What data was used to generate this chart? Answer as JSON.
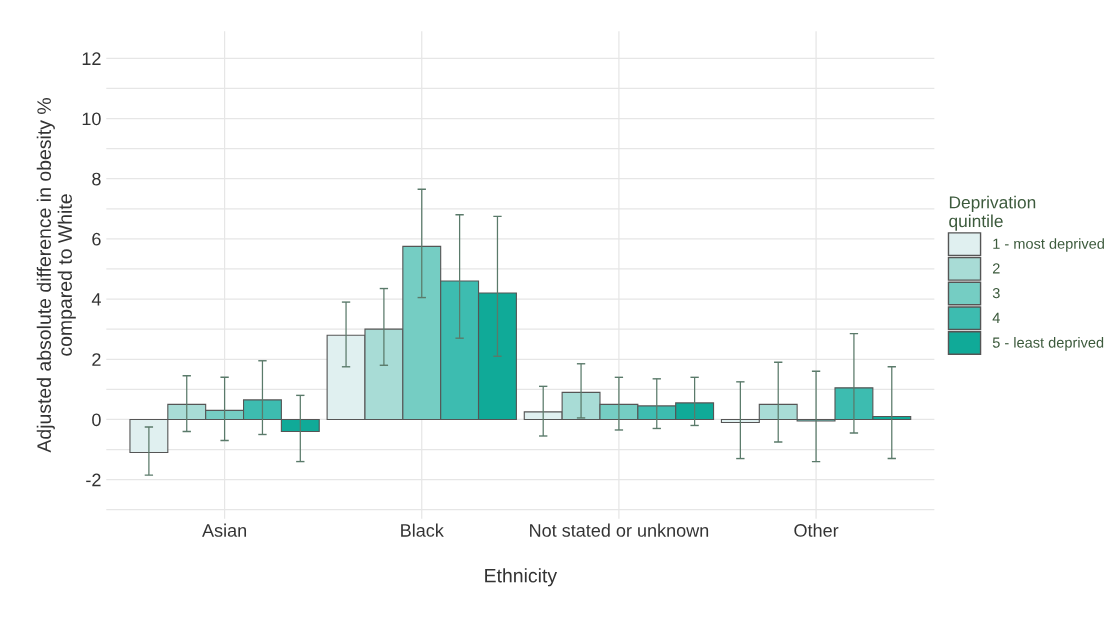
{
  "chart_data": {
    "type": "bar",
    "xlabel": "Ethnicity",
    "ylabel": "Adjusted absolute difference in obesity %\ncompared to White",
    "legend_title": "Deprivation\nquintile",
    "categories": [
      "Asian",
      "Black",
      "Not stated or unknown",
      "Other"
    ],
    "series": [
      {
        "name": "1 - most deprived",
        "color": "#e0f0f0",
        "values": [
          -1.1,
          2.8,
          0.25,
          -0.1
        ],
        "errors": [
          [
            -1.85,
            -0.25
          ],
          [
            1.75,
            3.9
          ],
          [
            -0.55,
            1.1
          ],
          [
            -1.3,
            1.25
          ]
        ]
      },
      {
        "name": "2",
        "color": "#a8dcd6",
        "values": [
          0.5,
          3.0,
          0.9,
          0.5
        ],
        "errors": [
          [
            -0.4,
            1.45
          ],
          [
            1.8,
            4.35
          ],
          [
            0.05,
            1.85
          ],
          [
            -0.75,
            1.9
          ]
        ]
      },
      {
        "name": "3",
        "color": "#75cdc3",
        "values": [
          0.3,
          5.75,
          0.5,
          -0.05
        ],
        "errors": [
          [
            -0.7,
            1.4
          ],
          [
            4.05,
            7.65
          ],
          [
            -0.35,
            1.4
          ],
          [
            -1.4,
            1.6
          ]
        ]
      },
      {
        "name": "4",
        "color": "#3dbcb0",
        "values": [
          0.65,
          4.6,
          0.45,
          1.05
        ],
        "errors": [
          [
            -0.5,
            1.95
          ],
          [
            2.7,
            6.8
          ],
          [
            -0.3,
            1.35
          ],
          [
            -0.45,
            2.85
          ]
        ]
      },
      {
        "name": "5 - least deprived",
        "color": "#10aa98",
        "values": [
          -0.4,
          4.2,
          0.55,
          0.1
        ],
        "errors": [
          [
            -1.4,
            0.8
          ],
          [
            2.1,
            6.75
          ],
          [
            -0.2,
            1.4
          ],
          [
            -1.3,
            1.75
          ]
        ]
      }
    ],
    "ylim": [
      -3.3,
      12.9
    ],
    "yticks": [
      {
        "value": -3,
        "label": null
      },
      -2,
      {
        "value": -1,
        "label": null
      },
      0,
      {
        "value": 1,
        "label": null
      },
      2,
      {
        "value": 3,
        "label": null
      },
      4,
      {
        "value": 5,
        "label": null
      },
      6,
      {
        "value": 7,
        "label": null
      },
      8,
      {
        "value": 9,
        "label": null
      },
      10,
      {
        "value": 11,
        "label": null
      },
      12
    ],
    "grid": true,
    "legend": "right"
  }
}
